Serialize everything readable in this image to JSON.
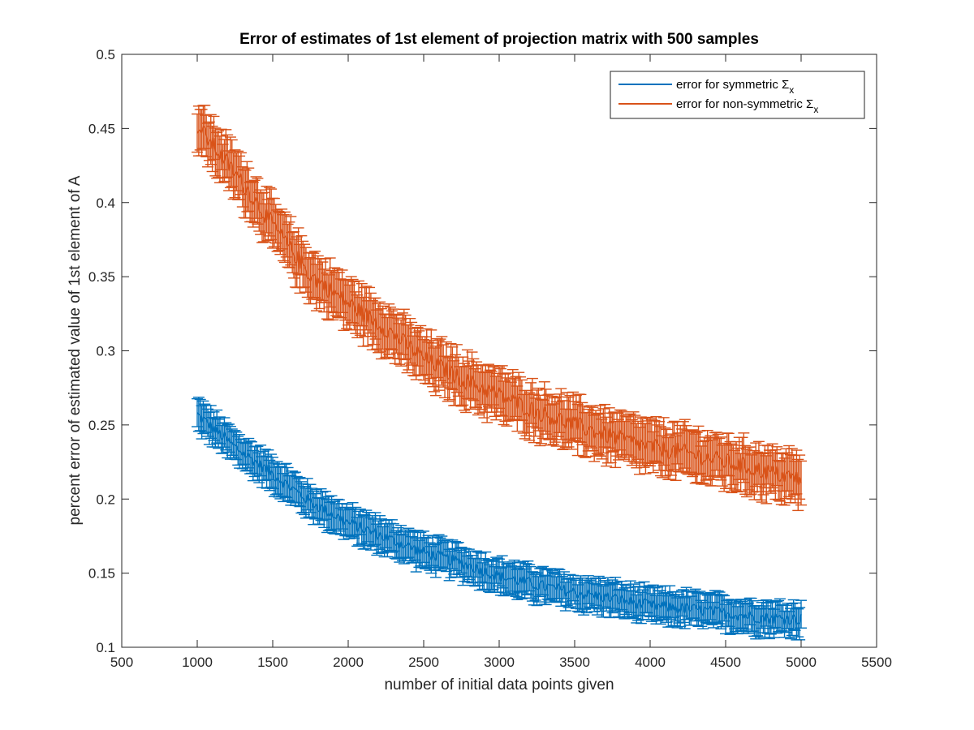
{
  "chart_data": {
    "type": "line",
    "title": "Error of estimates of 1st element of projection matrix with 500 samples",
    "xlabel": "number of initial data points given",
    "ylabel": "percent error of estimated value of 1st element of A",
    "xlim": [
      500,
      5500
    ],
    "ylim": [
      0.1,
      0.5
    ],
    "xticks": [
      500,
      1000,
      1500,
      2000,
      2500,
      3000,
      3500,
      4000,
      4500,
      5000,
      5500
    ],
    "xtick_labels": [
      "500",
      "1000",
      "1500",
      "2000",
      "2500",
      "3000",
      "3500",
      "4000",
      "4500",
      "5000",
      "5500"
    ],
    "yticks": [
      0.1,
      0.15,
      0.2,
      0.25,
      0.3,
      0.35,
      0.4,
      0.45,
      0.5
    ],
    "ytick_labels": [
      "0.1",
      "0.15",
      "0.2",
      "0.25",
      "0.3",
      "0.35",
      "0.4",
      "0.45",
      "0.5"
    ],
    "grid": false,
    "legend_position": "top-right",
    "error_bars": true,
    "x_range": [
      1000,
      5000
    ],
    "x_step": 10,
    "series": [
      {
        "name": "error for symmetric Σ",
        "name_subscript": "x",
        "color": "#0072BD",
        "anchor_x": [
          1000,
          1250,
          1500,
          1750,
          2000,
          2250,
          2500,
          2750,
          3000,
          3250,
          3500,
          3750,
          4000,
          4250,
          4500,
          4750,
          5000
        ],
        "anchor_y": [
          0.257,
          0.235,
          0.217,
          0.198,
          0.184,
          0.174,
          0.164,
          0.157,
          0.148,
          0.142,
          0.137,
          0.133,
          0.128,
          0.126,
          0.123,
          0.12,
          0.119
        ],
        "error_half_width": 0.01,
        "noise": 0.004
      },
      {
        "name": "error for non-symmetric Σ",
        "name_subscript": "x",
        "color": "#D95319",
        "anchor_x": [
          1000,
          1250,
          1500,
          1750,
          2000,
          2250,
          2500,
          2750,
          3000,
          3250,
          3500,
          3750,
          4000,
          4250,
          4500,
          4750,
          5000
        ],
        "anchor_y": [
          0.452,
          0.42,
          0.385,
          0.351,
          0.332,
          0.315,
          0.295,
          0.281,
          0.27,
          0.259,
          0.25,
          0.242,
          0.235,
          0.231,
          0.225,
          0.219,
          0.213
        ],
        "error_half_width": 0.015,
        "noise": 0.006
      }
    ]
  }
}
